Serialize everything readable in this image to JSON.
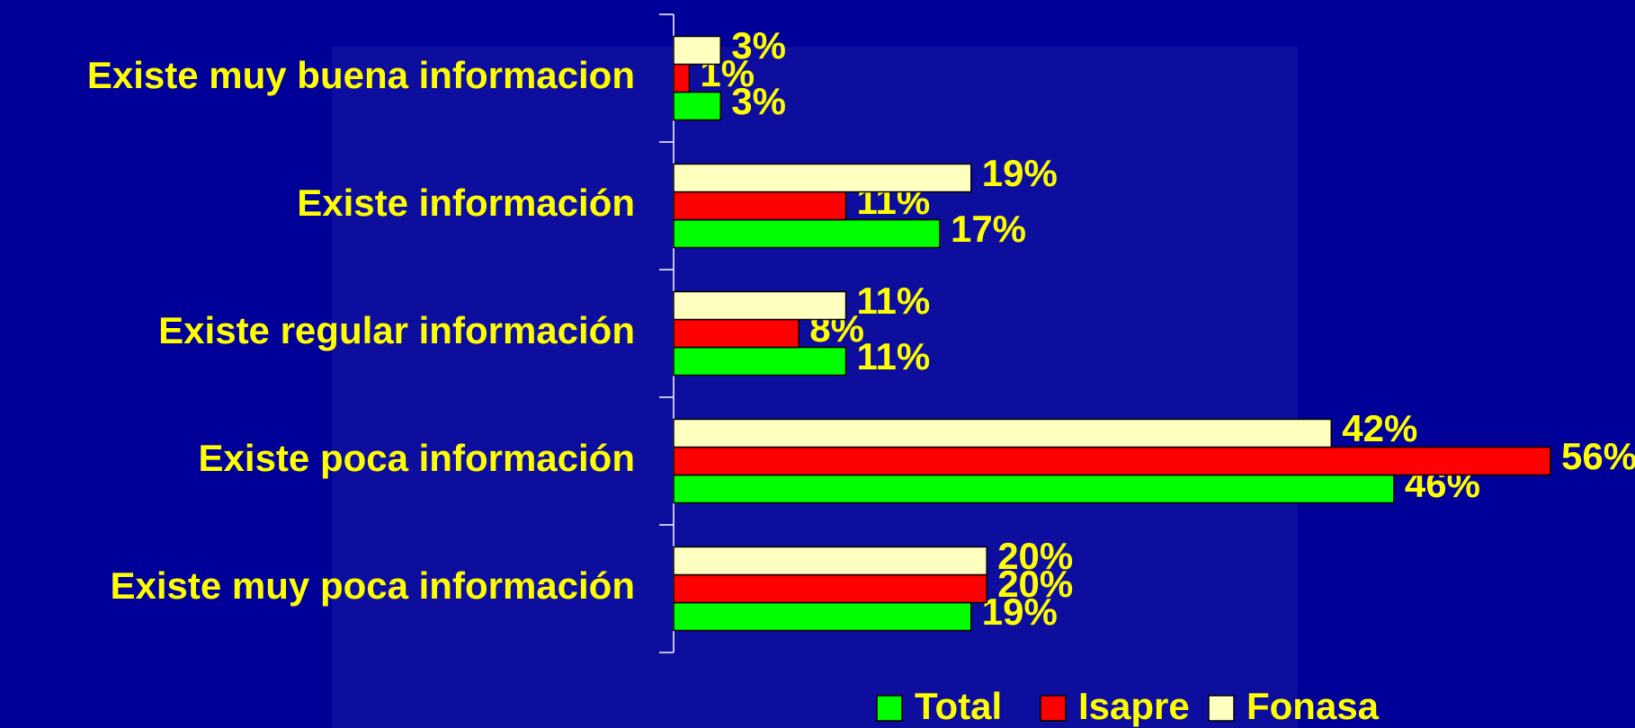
{
  "chart_data": {
    "type": "bar",
    "orientation": "horizontal",
    "categories": [
      "Existe muy buena informacion",
      "Existe información",
      "Existe regular información",
      "Existe poca información",
      "Existe muy poca información"
    ],
    "series": [
      {
        "name": "Total",
        "color": "#00ff00",
        "values": [
          3,
          17,
          11,
          46,
          19
        ],
        "value_labels": [
          "3%",
          "17%",
          "11%",
          "46%",
          "19%"
        ]
      },
      {
        "name": "Isapre",
        "color": "#ff0000",
        "values": [
          1,
          11,
          8,
          56,
          20
        ],
        "value_labels": [
          "1%",
          "11%",
          "8%",
          "56%",
          "20%"
        ]
      },
      {
        "name": "Fonasa",
        "color": "#ffffc0",
        "values": [
          3,
          19,
          11,
          42,
          20
        ],
        "value_labels": [
          "3%",
          "19%",
          "11%",
          "42%",
          "20%"
        ]
      }
    ],
    "legend": "bottom"
  }
}
